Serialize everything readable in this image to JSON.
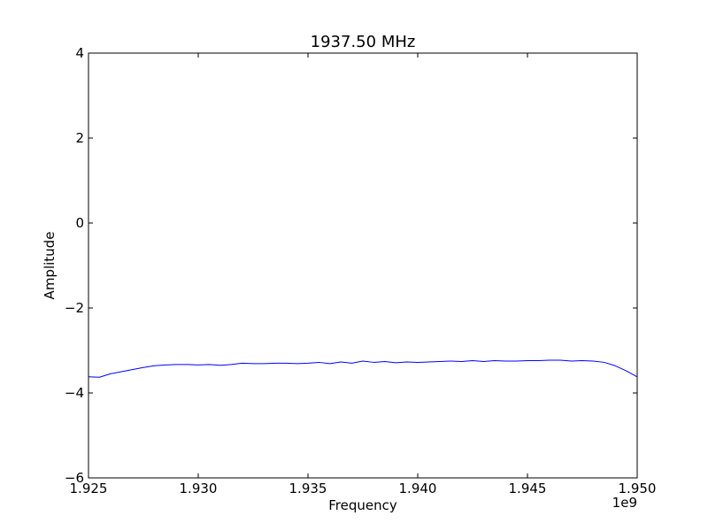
{
  "chart_data": {
    "type": "line",
    "title": "1937.50 MHz",
    "xlabel": "Frequency",
    "ylabel": "Amplitude",
    "x_offset_label": "1e9",
    "xlim": [
      1.925,
      1.95
    ],
    "ylim": [
      -6,
      4
    ],
    "x_ticks": [
      1.925,
      1.93,
      1.935,
      1.94,
      1.945,
      1.95
    ],
    "x_tick_labels": [
      "1.925",
      "1.930",
      "1.935",
      "1.940",
      "1.945",
      "1.950"
    ],
    "y_ticks": [
      -6,
      -4,
      -2,
      0,
      2,
      4
    ],
    "y_tick_labels": [
      "−6",
      "−4",
      "−2",
      "0",
      "2",
      "4"
    ],
    "grid": false,
    "series": [
      {
        "color": "#0000ff",
        "x": [
          1.925,
          1.9255,
          1.926,
          1.9265,
          1.927,
          1.9275,
          1.928,
          1.9285,
          1.929,
          1.9295,
          1.93,
          1.9305,
          1.931,
          1.9315,
          1.932,
          1.9325,
          1.933,
          1.9335,
          1.934,
          1.9345,
          1.935,
          1.9355,
          1.936,
          1.9365,
          1.937,
          1.9375,
          1.938,
          1.9385,
          1.939,
          1.9395,
          1.94,
          1.9405,
          1.941,
          1.9415,
          1.942,
          1.9425,
          1.943,
          1.9435,
          1.944,
          1.9445,
          1.945,
          1.9455,
          1.946,
          1.9465,
          1.947,
          1.9475,
          1.948,
          1.9485,
          1.949,
          1.9495,
          1.95
        ],
        "y": [
          -3.62,
          -3.63,
          -3.55,
          -3.5,
          -3.45,
          -3.4,
          -3.36,
          -3.34,
          -3.33,
          -3.33,
          -3.34,
          -3.33,
          -3.35,
          -3.33,
          -3.3,
          -3.31,
          -3.31,
          -3.3,
          -3.3,
          -3.31,
          -3.3,
          -3.28,
          -3.31,
          -3.27,
          -3.3,
          -3.25,
          -3.28,
          -3.26,
          -3.29,
          -3.27,
          -3.28,
          -3.27,
          -3.26,
          -3.25,
          -3.26,
          -3.24,
          -3.26,
          -3.24,
          -3.25,
          -3.25,
          -3.24,
          -3.24,
          -3.23,
          -3.23,
          -3.25,
          -3.24,
          -3.25,
          -3.28,
          -3.36,
          -3.48,
          -3.62
        ]
      }
    ]
  }
}
